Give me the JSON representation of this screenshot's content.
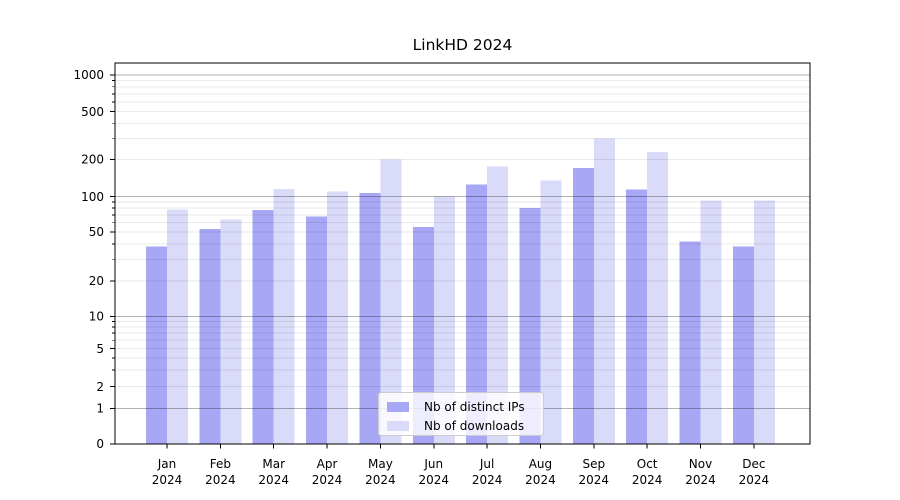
{
  "title": "LinkHD 2024",
  "legend": {
    "items": [
      {
        "label": "Nb of distinct IPs"
      },
      {
        "label": "Nb of downloads"
      }
    ]
  },
  "colors": {
    "bar_distinct_ips": "#a7a7f5",
    "bar_downloads": "#dadaf9",
    "grid_major": "#b3b3b3",
    "grid_minor": "#e8e8e8",
    "axis": "#000000",
    "background": "#ffffff"
  },
  "chart_data": {
    "type": "bar",
    "title": "LinkHD 2024",
    "categories": [
      "Jan 2024",
      "Feb 2024",
      "Mar 2024",
      "Apr 2024",
      "May 2024",
      "Jun 2024",
      "Jul 2024",
      "Aug 2024",
      "Sep 2024",
      "Oct 2024",
      "Nov 2024",
      "Dec 2024"
    ],
    "series": [
      {
        "name": "Nb of distinct IPs",
        "color": "#a7a7f5",
        "values": [
          38,
          53,
          77,
          68,
          107,
          55,
          125,
          80,
          170,
          114,
          42,
          38
        ]
      },
      {
        "name": "Nb of downloads",
        "color": "#dadaf9",
        "values": [
          78,
          64,
          115,
          110,
          200,
          100,
          175,
          135,
          300,
          230,
          93,
          93
        ]
      }
    ],
    "xlabel": "",
    "ylabel": "",
    "yscale": "symlog",
    "yticks": [
      0,
      1,
      2,
      5,
      10,
      20,
      50,
      100,
      200,
      500,
      1000
    ],
    "ylim": [
      0,
      1260
    ],
    "grid": "horizontal major and minor gridlines",
    "legend_position": "lower center"
  }
}
